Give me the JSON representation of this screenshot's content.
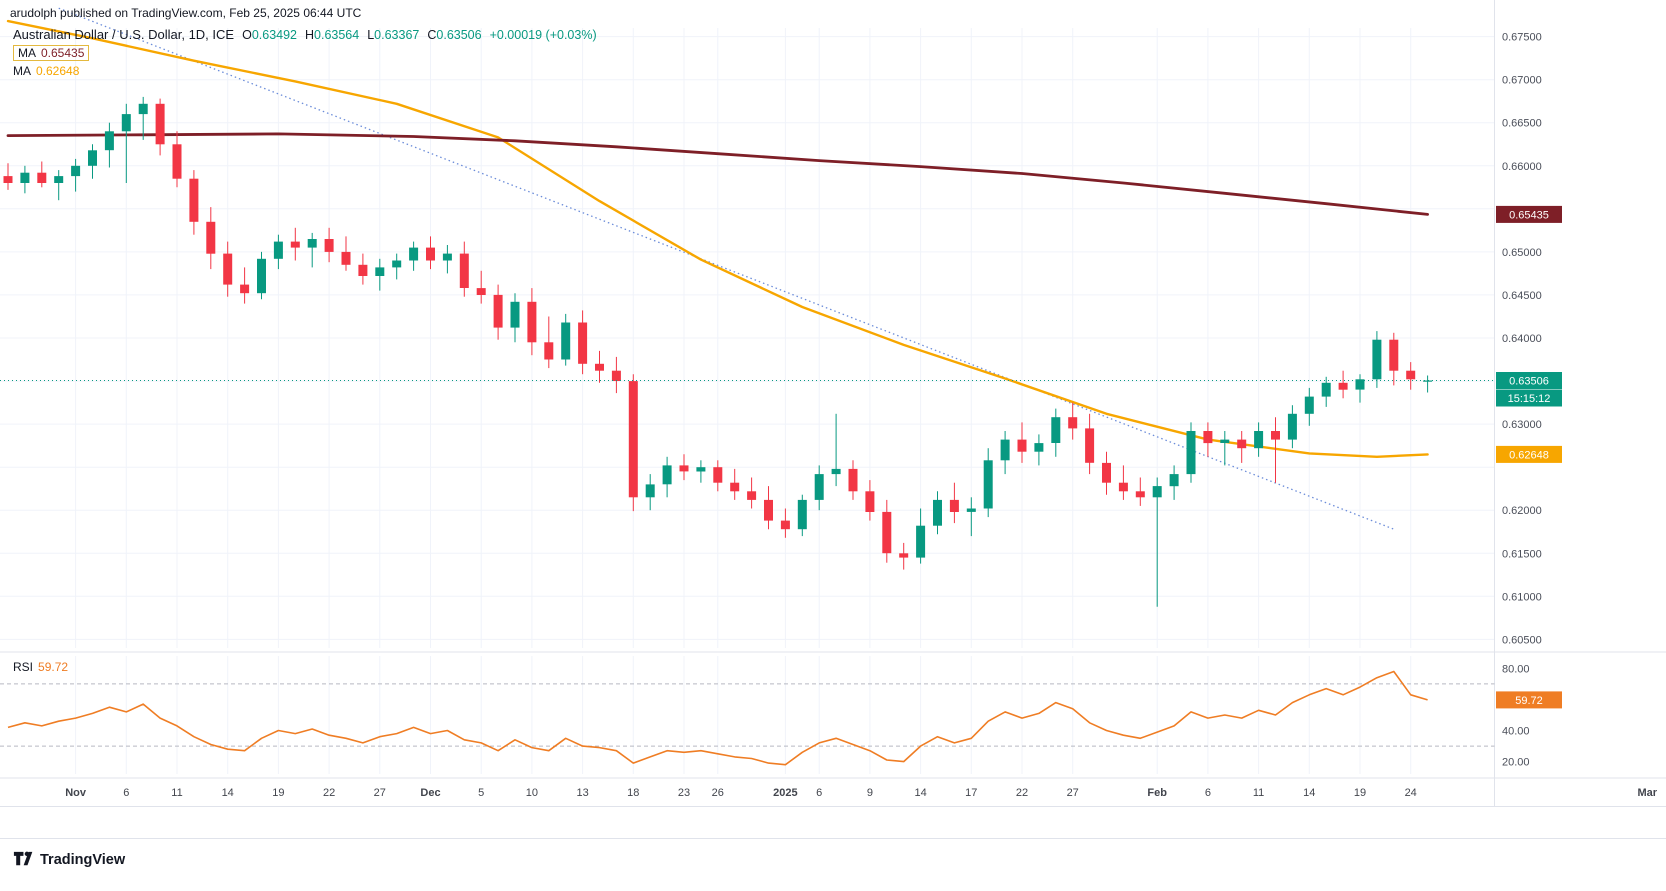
{
  "colors": {
    "up": "#089981",
    "down": "#f23645",
    "ma_slow": "#7e1f27",
    "ma_fast": "#f7a600",
    "rsi": "#ef7d24",
    "trend": "#6b8cd9",
    "grid": "#f0f3fa",
    "axis_text": "#4a4e59",
    "divider": "#e0e3eb"
  },
  "header": {
    "published": "arudolph published on TradingView.com, Feb 25, 2025 06:44 UTC"
  },
  "legend": {
    "symbol": "Australian Dollar / U.S. Dollar, 1D, ICE",
    "o_k": "O",
    "o_v": "0.63492",
    "h_k": "H",
    "h_v": "0.63564",
    "l_k": "L",
    "l_v": "0.63367",
    "c_k": "C",
    "c_v": "0.63506",
    "change": "+0.00019 (+0.03%)",
    "ma1_label": "MA",
    "ma1_value": "0.65435",
    "ma2_label": "MA",
    "ma2_value": "0.62648"
  },
  "rsi_legend": {
    "label": "RSI",
    "value": "59.72"
  },
  "price_axis": {
    "labels": [
      "0.67500",
      "0.67000",
      "0.66500",
      "0.66000",
      "0.65000",
      "0.64500",
      "0.64000",
      "0.63000",
      "0.62000",
      "0.61500",
      "0.61000",
      "0.60500"
    ],
    "badges": [
      {
        "text": "0.65435",
        "value": 0.65435,
        "color": "#7e1f27"
      },
      {
        "text": "0.63506",
        "value": 0.63506,
        "color": "#089981",
        "countdown": "15:15:12"
      },
      {
        "text": "0.62648",
        "value": 0.62648,
        "color": "#f7a600"
      }
    ]
  },
  "rsi_axis": {
    "labels": [
      {
        "text": "80.00",
        "v": 80
      },
      {
        "text": "40.00",
        "v": 40
      },
      {
        "text": "20.00",
        "v": 20
      }
    ],
    "badge": {
      "text": "59.72",
      "v": 59.72
    },
    "bands": [
      70,
      30
    ]
  },
  "footer": {
    "brand": "TradingView"
  },
  "chart_data": {
    "type": "candlestick",
    "title": "Australian Dollar / U.S. Dollar, 1D, ICE",
    "timeframe": "1D",
    "exchange": "ICE",
    "price_range": [
      0.604,
      0.676
    ],
    "current_price": 0.63506,
    "last": {
      "o": 0.63492,
      "h": 0.63564,
      "l": 0.63367,
      "c": 0.63506,
      "change": "+0.00019 (+0.03%)"
    },
    "ma_slow_value": 0.65435,
    "ma_fast_value": 0.62648,
    "candles": [
      [
        0.6588,
        0.6603,
        0.6572,
        0.658
      ],
      [
        0.658,
        0.66,
        0.6568,
        0.6592
      ],
      [
        0.6592,
        0.6605,
        0.6575,
        0.658
      ],
      [
        0.658,
        0.6595,
        0.656,
        0.6588
      ],
      [
        0.6588,
        0.6608,
        0.657,
        0.66
      ],
      [
        0.66,
        0.6625,
        0.6585,
        0.6618
      ],
      [
        0.6618,
        0.665,
        0.6598,
        0.664
      ],
      [
        0.664,
        0.6672,
        0.658,
        0.666
      ],
      [
        0.666,
        0.668,
        0.663,
        0.6672
      ],
      [
        0.6672,
        0.6678,
        0.6612,
        0.6625
      ],
      [
        0.6625,
        0.664,
        0.6575,
        0.6585
      ],
      [
        0.6585,
        0.6595,
        0.652,
        0.6535
      ],
      [
        0.6535,
        0.6552,
        0.648,
        0.6498
      ],
      [
        0.6498,
        0.6512,
        0.6448,
        0.6462
      ],
      [
        0.6462,
        0.6482,
        0.644,
        0.6452
      ],
      [
        0.6452,
        0.65,
        0.6445,
        0.6492
      ],
      [
        0.6492,
        0.652,
        0.648,
        0.6512
      ],
      [
        0.6512,
        0.6528,
        0.649,
        0.6505
      ],
      [
        0.6505,
        0.6522,
        0.6482,
        0.6515
      ],
      [
        0.6515,
        0.6528,
        0.6488,
        0.65
      ],
      [
        0.65,
        0.6518,
        0.6478,
        0.6485
      ],
      [
        0.6485,
        0.6498,
        0.6462,
        0.6472
      ],
      [
        0.6472,
        0.6492,
        0.6455,
        0.6482
      ],
      [
        0.6482,
        0.6498,
        0.6468,
        0.649
      ],
      [
        0.649,
        0.6512,
        0.6478,
        0.6505
      ],
      [
        0.6505,
        0.6518,
        0.648,
        0.649
      ],
      [
        0.649,
        0.6508,
        0.6475,
        0.6498
      ],
      [
        0.6498,
        0.6512,
        0.6448,
        0.6458
      ],
      [
        0.6458,
        0.6478,
        0.644,
        0.645
      ],
      [
        0.645,
        0.6462,
        0.6398,
        0.6412
      ],
      [
        0.6412,
        0.6452,
        0.6395,
        0.6442
      ],
      [
        0.6442,
        0.6458,
        0.638,
        0.6395
      ],
      [
        0.6395,
        0.6425,
        0.6365,
        0.6375
      ],
      [
        0.6375,
        0.6428,
        0.6368,
        0.6418
      ],
      [
        0.6418,
        0.6432,
        0.6358,
        0.637
      ],
      [
        0.637,
        0.6385,
        0.6348,
        0.6362
      ],
      [
        0.6362,
        0.6378,
        0.6336,
        0.635
      ],
      [
        0.635,
        0.6358,
        0.6199,
        0.6215
      ],
      [
        0.6215,
        0.6242,
        0.62,
        0.623
      ],
      [
        0.623,
        0.6262,
        0.6215,
        0.6252
      ],
      [
        0.6252,
        0.6265,
        0.6235,
        0.6245
      ],
      [
        0.6245,
        0.6258,
        0.6232,
        0.625
      ],
      [
        0.625,
        0.6258,
        0.6222,
        0.6232
      ],
      [
        0.6232,
        0.6248,
        0.6212,
        0.6222
      ],
      [
        0.6222,
        0.6238,
        0.6202,
        0.6212
      ],
      [
        0.6212,
        0.6228,
        0.6178,
        0.6188
      ],
      [
        0.6188,
        0.6202,
        0.6168,
        0.6178
      ],
      [
        0.6178,
        0.6218,
        0.617,
        0.6212
      ],
      [
        0.6212,
        0.6252,
        0.62,
        0.6242
      ],
      [
        0.6242,
        0.6312,
        0.6228,
        0.6248
      ],
      [
        0.6248,
        0.6258,
        0.6212,
        0.6222
      ],
      [
        0.6222,
        0.6235,
        0.6188,
        0.6198
      ],
      [
        0.6198,
        0.6212,
        0.6139,
        0.615
      ],
      [
        0.615,
        0.6162,
        0.6131,
        0.6145
      ],
      [
        0.6145,
        0.6202,
        0.6138,
        0.6182
      ],
      [
        0.6182,
        0.6222,
        0.6172,
        0.6212
      ],
      [
        0.6212,
        0.6232,
        0.6185,
        0.6198
      ],
      [
        0.6198,
        0.6215,
        0.617,
        0.6202
      ],
      [
        0.6202,
        0.6272,
        0.6192,
        0.6258
      ],
      [
        0.6258,
        0.6292,
        0.6242,
        0.6282
      ],
      [
        0.6282,
        0.6302,
        0.6255,
        0.6268
      ],
      [
        0.6268,
        0.6288,
        0.6252,
        0.6278
      ],
      [
        0.6278,
        0.6318,
        0.6262,
        0.6308
      ],
      [
        0.6308,
        0.6325,
        0.6282,
        0.6295
      ],
      [
        0.6295,
        0.6312,
        0.6242,
        0.6255
      ],
      [
        0.6255,
        0.6268,
        0.6218,
        0.6232
      ],
      [
        0.6232,
        0.6252,
        0.6212,
        0.6222
      ],
      [
        0.6222,
        0.6238,
        0.6205,
        0.6215
      ],
      [
        0.6215,
        0.6238,
        0.6088,
        0.6228
      ],
      [
        0.6228,
        0.6252,
        0.6212,
        0.6242
      ],
      [
        0.6242,
        0.6302,
        0.6232,
        0.6292
      ],
      [
        0.6292,
        0.6302,
        0.6262,
        0.6278
      ],
      [
        0.6278,
        0.6292,
        0.6252,
        0.6282
      ],
      [
        0.6282,
        0.6292,
        0.6255,
        0.6272
      ],
      [
        0.6272,
        0.6302,
        0.6262,
        0.6292
      ],
      [
        0.6292,
        0.6308,
        0.6232,
        0.6282
      ],
      [
        0.6282,
        0.6322,
        0.6272,
        0.6312
      ],
      [
        0.6312,
        0.6342,
        0.6298,
        0.6332
      ],
      [
        0.6332,
        0.6355,
        0.632,
        0.6348
      ],
      [
        0.6348,
        0.6362,
        0.633,
        0.634
      ],
      [
        0.634,
        0.6358,
        0.6325,
        0.6352
      ],
      [
        0.6352,
        0.6408,
        0.6342,
        0.6398
      ],
      [
        0.6398,
        0.6406,
        0.6345,
        0.6362
      ],
      [
        0.6362,
        0.6372,
        0.634,
        0.6352
      ],
      [
        0.63492,
        0.63564,
        0.63367,
        0.63506
      ]
    ],
    "ticks": [
      {
        "i": 4,
        "label": "Nov"
      },
      {
        "i": 7,
        "label": "6"
      },
      {
        "i": 10,
        "label": "11"
      },
      {
        "i": 13,
        "label": "14"
      },
      {
        "i": 16,
        "label": "19"
      },
      {
        "i": 19,
        "label": "22"
      },
      {
        "i": 22,
        "label": "27"
      },
      {
        "i": 25,
        "label": "Dec"
      },
      {
        "i": 28,
        "label": "5"
      },
      {
        "i": 31,
        "label": "10"
      },
      {
        "i": 34,
        "label": "13"
      },
      {
        "i": 37,
        "label": "18"
      },
      {
        "i": 40,
        "label": "23"
      },
      {
        "i": 42,
        "label": "26"
      },
      {
        "i": 46,
        "label": "2025"
      },
      {
        "i": 48,
        "label": "6"
      },
      {
        "i": 51,
        "label": "9"
      },
      {
        "i": 54,
        "label": "14"
      },
      {
        "i": 57,
        "label": "17"
      },
      {
        "i": 60,
        "label": "22"
      },
      {
        "i": 63,
        "label": "27"
      },
      {
        "i": 68,
        "label": "Feb"
      },
      {
        "i": 71,
        "label": "6"
      },
      {
        "i": 74,
        "label": "11"
      },
      {
        "i": 77,
        "label": "14"
      },
      {
        "i": 80,
        "label": "19"
      },
      {
        "i": 83,
        "label": "24"
      },
      {
        "i": 97,
        "label": "Mar"
      }
    ],
    "ma_slow_points": [
      [
        0,
        0.6635
      ],
      [
        8,
        0.6636
      ],
      [
        16,
        0.6637
      ],
      [
        24,
        0.6634
      ],
      [
        30,
        0.6629
      ],
      [
        36,
        0.6622
      ],
      [
        42,
        0.6614
      ],
      [
        48,
        0.6606
      ],
      [
        54,
        0.6599
      ],
      [
        60,
        0.6591
      ],
      [
        66,
        0.658
      ],
      [
        72,
        0.6568
      ],
      [
        78,
        0.6556
      ],
      [
        84,
        0.65435
      ]
    ],
    "ma_fast_points": [
      [
        0,
        0.6768
      ],
      [
        5,
        0.6748
      ],
      [
        11,
        0.6722
      ],
      [
        17,
        0.6698
      ],
      [
        23,
        0.6672
      ],
      [
        29,
        0.6633
      ],
      [
        35,
        0.6559
      ],
      [
        41,
        0.6491
      ],
      [
        47,
        0.6436
      ],
      [
        53,
        0.6392
      ],
      [
        59,
        0.6353
      ],
      [
        65,
        0.6312
      ],
      [
        71,
        0.6282
      ],
      [
        77,
        0.6266
      ],
      [
        81,
        0.6262
      ],
      [
        84,
        0.62648
      ]
    ],
    "trendline": [
      [
        3,
        0.6783
      ],
      [
        82,
        0.6178
      ]
    ],
    "rsi": {
      "current": 59.72,
      "bands": [
        70,
        30
      ],
      "values": [
        42,
        45,
        43,
        46,
        48,
        51,
        55,
        52,
        57,
        48,
        43,
        36,
        31,
        28,
        27,
        35,
        40,
        38,
        41,
        37,
        35,
        32,
        36,
        38,
        42,
        38,
        40,
        34,
        32,
        27,
        34,
        29,
        27,
        35,
        30,
        29,
        27,
        19,
        23,
        27,
        26,
        27,
        25,
        23,
        22,
        19,
        18,
        26,
        32,
        35,
        31,
        27,
        21,
        20,
        30,
        36,
        32,
        35,
        46,
        52,
        48,
        51,
        58,
        54,
        45,
        40,
        37,
        35,
        39,
        43,
        52,
        48,
        50,
        48,
        53,
        50,
        58,
        63,
        67,
        63,
        68,
        74,
        78,
        63,
        59.72
      ]
    }
  }
}
